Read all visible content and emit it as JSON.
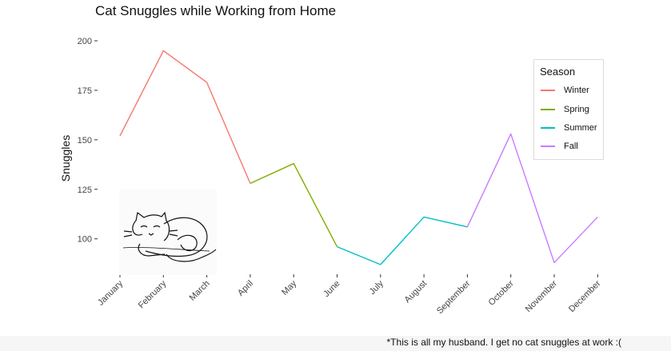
{
  "chart_data": {
    "type": "line",
    "title": "Cat Snuggles while Working from Home",
    "xlabel": "",
    "ylabel": "Snuggles",
    "categories": [
      "January",
      "February",
      "March",
      "April",
      "May",
      "June",
      "July",
      "August",
      "September",
      "October",
      "November",
      "December"
    ],
    "values": [
      152,
      195,
      179,
      128,
      138,
      96,
      87,
      111,
      106,
      153,
      88,
      111
    ],
    "segments": [
      {
        "name": "Winter",
        "color": "#f8766d",
        "from": 0,
        "to": 3
      },
      {
        "name": "Spring",
        "color": "#7cae00",
        "from": 3,
        "to": 5
      },
      {
        "name": "Summer",
        "color": "#00bfc4",
        "from": 5,
        "to": 8
      },
      {
        "name": "Fall",
        "color": "#c77cff",
        "from": 8,
        "to": 11
      }
    ],
    "yticks": [
      100,
      125,
      150,
      175,
      200
    ],
    "ylim": [
      83,
      205
    ],
    "grid": false,
    "legend": {
      "title": "Season",
      "position": "top-right",
      "entries": [
        {
          "label": "Winter",
          "color": "#f8766d"
        },
        {
          "label": "Spring",
          "color": "#7cae00"
        },
        {
          "label": "Summer",
          "color": "#00bfc4"
        },
        {
          "label": "Fall",
          "color": "#c77cff"
        }
      ]
    },
    "caption": "*This is all my husband. I get no cat snuggles at work :("
  }
}
